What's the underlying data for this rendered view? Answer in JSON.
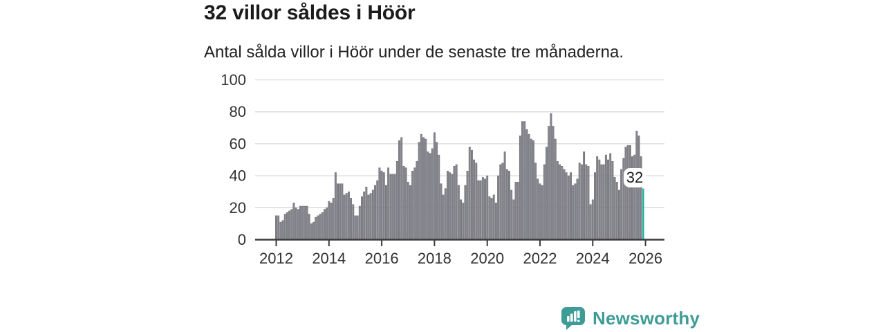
{
  "header": {
    "title": "32 villor såldes i Höör",
    "subtitle": "Antal sålda villor i Höör under de senaste tre månaderna."
  },
  "chart_data": {
    "type": "bar",
    "title": "32 villor såldes i Höör",
    "subtitle": "Antal sålda villor i Höör under de senaste tre månaderna.",
    "frequency": "monthly",
    "x_start": "2012-01",
    "x_end": "2025-12",
    "values": [
      15,
      15,
      11,
      12,
      16,
      17,
      18,
      19,
      23,
      20,
      19,
      21,
      21,
      21,
      21,
      16,
      10,
      11,
      14,
      15,
      16,
      17,
      19,
      20,
      24,
      23,
      26,
      42,
      35,
      35,
      35,
      28,
      29,
      30,
      26,
      22,
      15,
      15,
      21,
      27,
      30,
      33,
      28,
      29,
      31,
      34,
      37,
      45,
      43,
      42,
      34,
      45,
      41,
      41,
      41,
      49,
      62,
      64,
      46,
      45,
      36,
      34,
      43,
      45,
      49,
      61,
      66,
      64,
      63,
      55,
      54,
      57,
      67,
      61,
      53,
      35,
      28,
      32,
      43,
      42,
      41,
      46,
      47,
      34,
      25,
      23,
      34,
      43,
      58,
      56,
      50,
      48,
      37,
      37,
      39,
      38,
      40,
      27,
      26,
      28,
      23,
      40,
      47,
      48,
      55,
      44,
      43,
      31,
      25,
      36,
      36,
      65,
      74,
      74,
      69,
      66,
      63,
      62,
      48,
      38,
      35,
      34,
      47,
      58,
      71,
      79,
      71,
      63,
      49,
      47,
      46,
      44,
      42,
      40,
      42,
      34,
      35,
      38,
      48,
      47,
      55,
      47,
      46,
      22,
      25,
      42,
      52,
      50,
      47,
      47,
      53,
      50,
      54,
      49,
      39,
      36,
      31,
      44,
      51,
      58,
      59,
      59,
      52,
      53,
      68,
      65,
      52,
      32
    ],
    "highlight": {
      "index": 167,
      "value": 32,
      "label": "32",
      "color": "#0fb2a4"
    },
    "bar_color": "#85858d",
    "bar_edge_color": "#69696f",
    "x_tick_labels": [
      "2012",
      "2014",
      "2016",
      "2018",
      "2020",
      "2022",
      "2024",
      "2026"
    ],
    "y_ticks": [
      0,
      20,
      40,
      60,
      80,
      100
    ],
    "ylim": [
      0,
      100
    ],
    "grid": "horizontal",
    "gridline_color": "#d8d8d8",
    "axis_color": "#3a3a3a",
    "tick_label_color": "#333333",
    "legend": "none"
  },
  "annotation": {
    "label": "32"
  },
  "footer": {
    "brand": "Newsworthy",
    "logo_color": "#3e9c97",
    "logo_icon": "chart-bars-speech-bubble"
  }
}
